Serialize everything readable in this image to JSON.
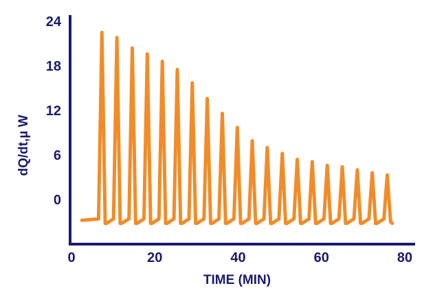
{
  "chart_data": {
    "type": "line",
    "title": "",
    "xlabel": "TIME (MIN)",
    "ylabel": "dQ/dt,µ W",
    "xlim": [
      0,
      80
    ],
    "ylim": [
      -6,
      24
    ],
    "x_ticks": [
      "0",
      "20",
      "40",
      "60",
      "80"
    ],
    "y_ticks": [
      "0",
      "6",
      "12",
      "18",
      "24"
    ],
    "grid": false,
    "legend": "none",
    "colors": {
      "line": "#f28c28",
      "axis": "#1a1a6e",
      "text": "#1a1a6e"
    },
    "baseline": -3.0,
    "injection_times": [
      7.3,
      10.9,
      14.6,
      18.2,
      21.8,
      25.4,
      29.0,
      32.6,
      36.2,
      39.8,
      43.4,
      47.0,
      50.6,
      54.2,
      57.8,
      61.4,
      65.0,
      68.6,
      72.2,
      75.8
    ],
    "peak_heights": [
      22.5,
      21.8,
      20.4,
      19.6,
      18.6,
      17.5,
      15.7,
      13.6,
      11.6,
      9.7,
      7.9,
      7.0,
      6.2,
      5.4,
      5.1,
      4.6,
      4.4,
      4.0,
      3.6,
      3.3
    ],
    "series": [
      {
        "x": [
          2.5,
          6.5,
          7.3,
          8.1,
          8.4,
          10.1,
          10.9,
          11.7,
          12.0,
          13.8,
          14.6,
          15.4,
          15.7,
          17.4,
          18.2,
          19.0,
          19.3,
          21.0,
          21.8,
          22.6,
          22.9,
          24.6,
          25.4,
          26.2,
          26.5,
          28.2,
          29.0,
          29.8,
          30.1,
          31.8,
          32.6,
          33.4,
          33.7,
          35.4,
          36.2,
          37.0,
          37.3,
          39.0,
          39.8,
          40.6,
          40.9,
          42.6,
          43.4,
          44.2,
          44.5,
          46.2,
          47.0,
          47.8,
          48.1,
          49.8,
          50.6,
          51.4,
          51.7,
          53.4,
          54.2,
          55.0,
          55.3,
          57.0,
          57.8,
          58.6,
          58.9,
          60.6,
          61.4,
          62.2,
          62.5,
          64.2,
          65.0,
          65.8,
          66.1,
          67.8,
          68.6,
          69.4,
          69.7,
          71.4,
          72.2,
          73.0,
          73.3,
          75.0,
          75.8,
          76.6,
          77.0
        ],
        "y": [
          -2.8,
          -2.6,
          22.5,
          -3.2,
          -3.2,
          -2.6,
          21.8,
          -3.2,
          -3.2,
          -2.6,
          20.4,
          -3.2,
          -3.2,
          -2.6,
          19.6,
          -3.2,
          -3.2,
          -2.6,
          18.6,
          -3.2,
          -3.2,
          -2.6,
          17.5,
          -3.2,
          -3.2,
          -2.6,
          15.7,
          -3.2,
          -3.2,
          -2.6,
          13.6,
          -3.2,
          -3.2,
          -2.6,
          11.6,
          -3.2,
          -3.2,
          -2.6,
          9.7,
          -3.2,
          -3.2,
          -2.6,
          7.9,
          -3.2,
          -3.2,
          -2.6,
          7.0,
          -3.2,
          -3.2,
          -2.6,
          6.2,
          -3.2,
          -3.2,
          -2.6,
          5.4,
          -3.2,
          -3.2,
          -2.6,
          5.1,
          -3.2,
          -3.2,
          -2.6,
          4.6,
          -3.2,
          -3.2,
          -2.6,
          4.4,
          -3.2,
          -3.2,
          -2.6,
          4.0,
          -3.2,
          -3.2,
          -2.6,
          3.6,
          -3.2,
          -3.2,
          -2.6,
          3.3,
          -3.0,
          -3.2
        ]
      }
    ]
  }
}
